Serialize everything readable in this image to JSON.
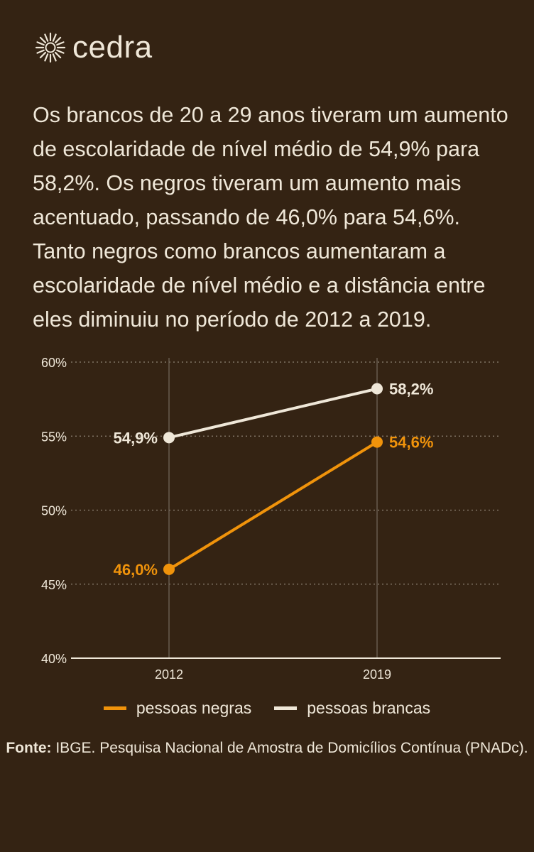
{
  "brand": {
    "name": "cedra",
    "icon": "sun-burst-icon"
  },
  "intro_text": "Os brancos de 20 a 29 anos tiveram um aumento de escolaridade de nível médio de 54,9% para 58,2%. Os negros tiveram um aumento mais acentuado, passando de 46,0% para 54,6%. Tanto negros como brancos aumentaram a escolaridade de nível médio e a distância entre eles diminuiu no período de 2012 a 2019.",
  "colors": {
    "background": "#342313",
    "text": "#efe7d8",
    "negras": "#f0930b",
    "brancas": "#efe7d8",
    "grid": "#8f8476"
  },
  "chart_data": {
    "type": "line",
    "categories": [
      "2012",
      "2019"
    ],
    "series": [
      {
        "name": "pessoas negras",
        "values": [
          46.0,
          54.6
        ],
        "labels": [
          "46,0%",
          "54,6%"
        ],
        "color": "#f0930b"
      },
      {
        "name": "pessoas brancas",
        "values": [
          54.9,
          58.2
        ],
        "labels": [
          "54,9%",
          "58,2%"
        ],
        "color": "#efe7d8"
      }
    ],
    "ylim": [
      40,
      60
    ],
    "yticks": [
      40,
      45,
      50,
      55,
      60
    ],
    "ytick_labels": [
      "40%",
      "45%",
      "50%",
      "55%",
      "60%"
    ],
    "grid": "horizontal dotted",
    "legend_position": "bottom"
  },
  "legend": {
    "negras": "pessoas negras",
    "brancas": "pessoas brancas"
  },
  "source": {
    "label": "Fonte:",
    "text": " IBGE. Pesquisa Nacional de Amostra de Domicílios Contínua (PNADc)."
  }
}
